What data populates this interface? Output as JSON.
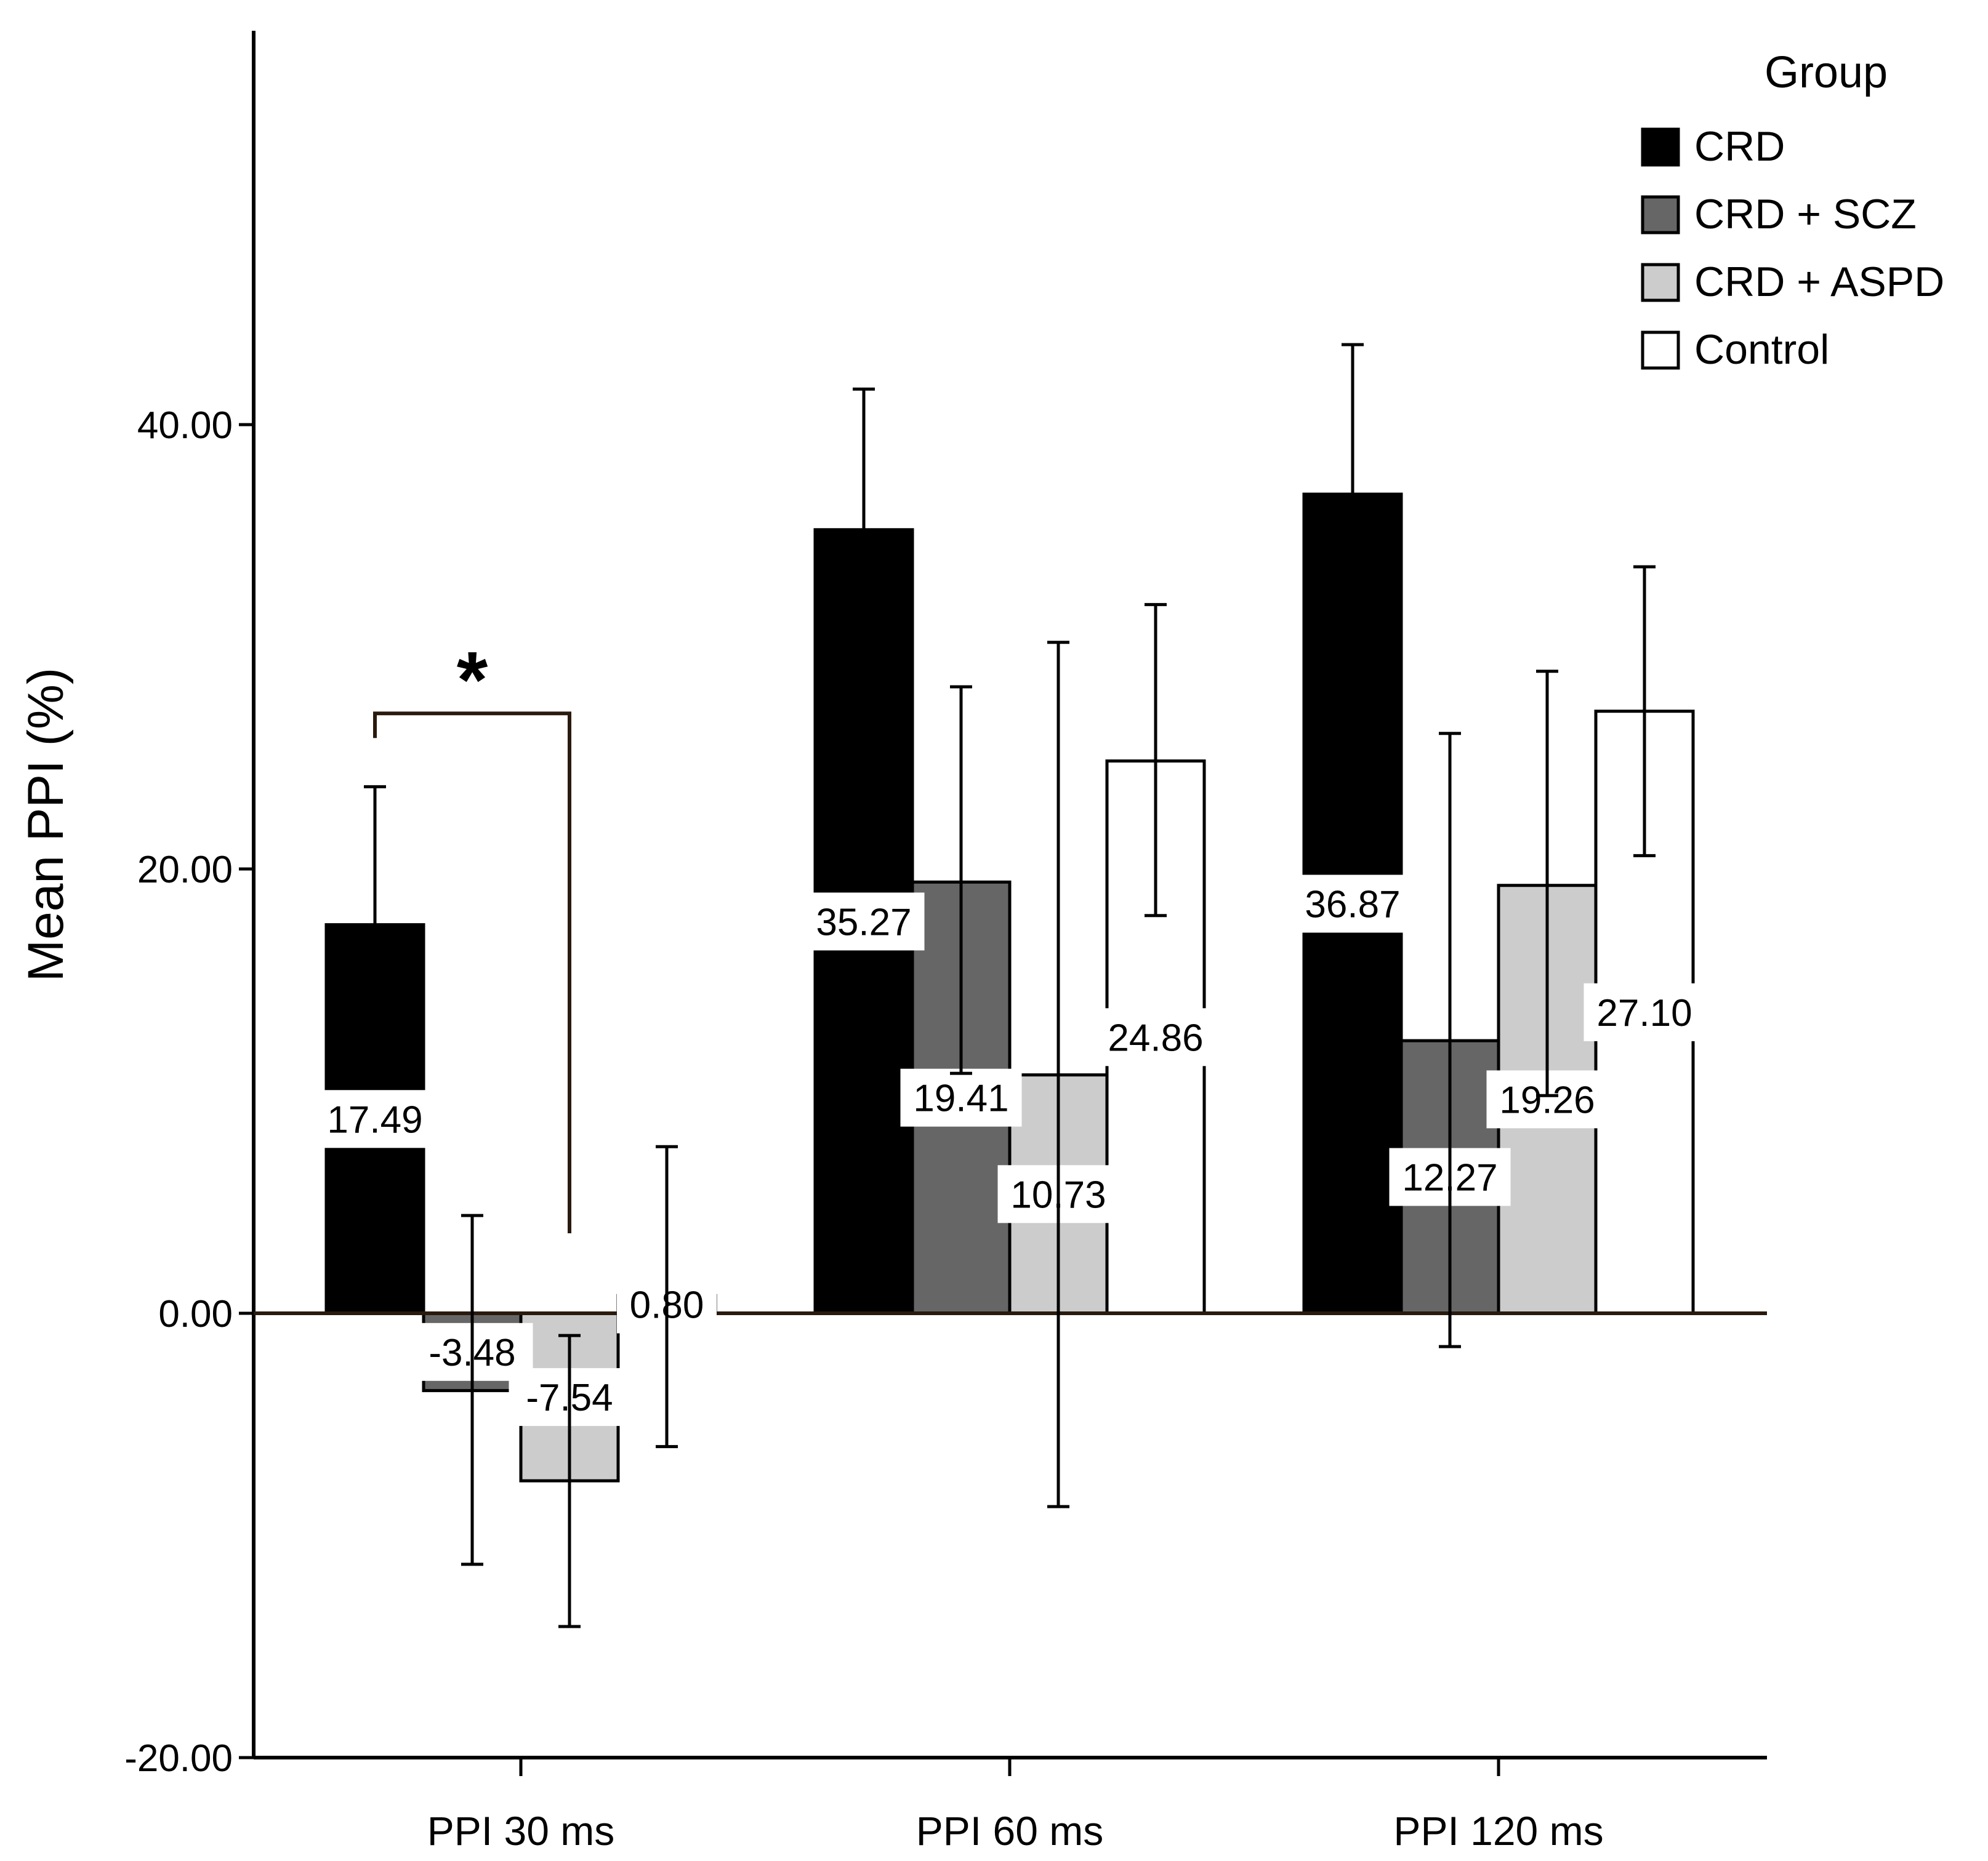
{
  "chart_data": {
    "type": "bar",
    "title": "",
    "xlabel": "",
    "ylabel": "Mean PPI (%)",
    "ylim": [
      -20,
      57
    ],
    "yticks": [
      -20,
      0,
      20,
      40
    ],
    "ytick_labels": [
      "-20.00",
      "0.00",
      "20.00",
      "40.00"
    ],
    "grid": false,
    "legend_position": "top-right",
    "legend_title": "Group",
    "categories": [
      "PPI 30 ms",
      "PPI 60 ms",
      "PPI 120 ms"
    ],
    "series": [
      {
        "name": "CRD",
        "color": "#000000",
        "values": [
          17.49,
          35.27,
          36.87
        ],
        "labels": [
          "17.49",
          "35.27",
          "36.87"
        ],
        "error_low": [
          11.0,
          29.0,
          31.4
        ],
        "error_high": [
          23.7,
          41.6,
          43.6
        ]
      },
      {
        "name": "CRD + SCZ",
        "color": "#666666",
        "values": [
          -3.48,
          19.41,
          12.27
        ],
        "labels": [
          "-3.48",
          "19.41",
          "12.27"
        ],
        "error_low": [
          -11.3,
          10.8,
          -1.5
        ],
        "error_high": [
          4.4,
          28.2,
          26.1
        ]
      },
      {
        "name": "CRD + ASPD",
        "color": "#cccccc",
        "values": [
          -7.54,
          10.73,
          19.26
        ],
        "labels": [
          "-7.54",
          "10.73",
          "19.26"
        ],
        "error_low": [
          -14.1,
          -8.7,
          9.8
        ],
        "error_high": [
          -1.0,
          30.2,
          28.9
        ]
      },
      {
        "name": "Control",
        "color": "#ffffff",
        "values": [
          0.8,
          24.86,
          27.1
        ],
        "labels": [
          "0.80",
          "24.86",
          "27.10"
        ],
        "error_low": [
          -6.0,
          17.9,
          20.6
        ],
        "error_high": [
          7.5,
          31.9,
          33.6
        ]
      }
    ],
    "annotations": [
      {
        "text": "*",
        "between": [
          "CRD",
          "CRD + ASPD"
        ],
        "category": "PPI 30 ms",
        "level": 27.0
      }
    ]
  }
}
